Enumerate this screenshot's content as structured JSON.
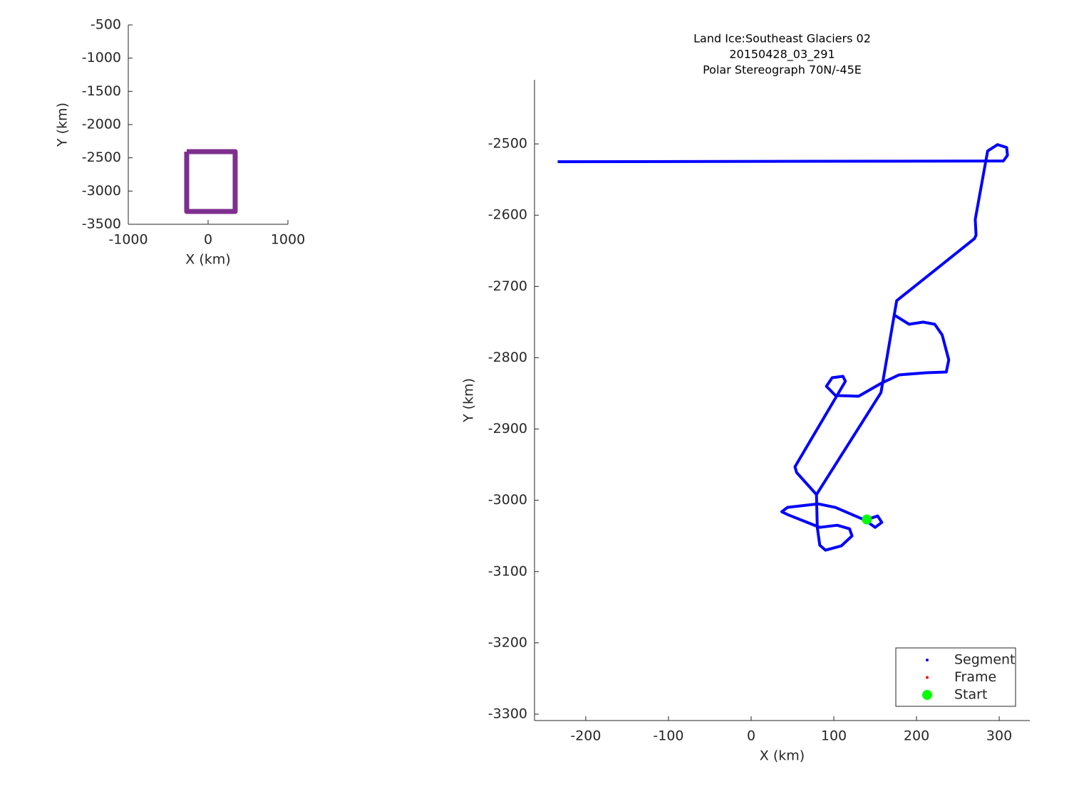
{
  "chart_data": [
    {
      "type": "line",
      "xlabel": "X (km)",
      "ylabel": "Y (km)",
      "xlim": [
        -1000,
        1000
      ],
      "xticks": [
        -1000,
        0,
        1000
      ],
      "ylim": [
        -3500,
        -500
      ],
      "yticks": [
        -3500,
        -3000,
        -2500,
        -2000,
        -1500,
        -1000,
        -500
      ],
      "series": [
        {
          "color": "#7e2f8e",
          "x": [
            -268,
            339,
            339,
            -268,
            -268
          ],
          "y": [
            -2407,
            -2407,
            -3307,
            -3307,
            -2407
          ]
        }
      ]
    },
    {
      "type": "line",
      "title": [
        "Land Ice:Southeast  Glaciers 02",
        "20150428_03_291",
        "Polar Stereograph 70N/-45E"
      ],
      "xlabel": "X (km)",
      "ylabel": "Y (km)",
      "xlim": [
        -262,
        337
      ],
      "xticks": [
        -200,
        -100,
        0,
        100,
        200,
        300
      ],
      "ylim": [
        -3309,
        -2410
      ],
      "yticks": [
        -3300,
        -3200,
        -3100,
        -3000,
        -2900,
        -2800,
        -2700,
        -2600,
        -2500
      ],
      "legend": "lower right",
      "series": [
        {
          "name": "Segment",
          "color": "#0000ff",
          "x": [
            140,
            153,
            158,
            150,
            138,
            102,
            81,
            44,
            37,
            44,
            83,
            104,
            119,
            122,
            109,
            90,
            83,
            80,
            79,
            55,
            53,
            114,
            111,
            98,
            91,
            102,
            130,
            157,
            179,
            212,
            236,
            239,
            231,
            222,
            208,
            191,
            173,
            null,
            79,
            157,
            176,
            270,
            272,
            271,
            286,
            298,
            309,
            310,
            305,
            -234
          ],
          "y": [
            -3027,
            -3022,
            -3031,
            -3038,
            -3028,
            -3010,
            -3005,
            -3010,
            -3016,
            -3020,
            -3038,
            -3035,
            -3040,
            -3050,
            -3064,
            -3070,
            -3063,
            -3038,
            -2992,
            -2961,
            -2953,
            -2833,
            -2826,
            -2828,
            -2840,
            -2853,
            -2854,
            -2836,
            -2824,
            -2821,
            -2820,
            -2803,
            -2768,
            -2753,
            -2750,
            -2753,
            -2740,
            null,
            -2992,
            -2849,
            -2720,
            -2633,
            -2628,
            -2606,
            -2510,
            -2501,
            -2505,
            -2516,
            -2524,
            -2525
          ]
        },
        {
          "name": "Frame",
          "color": "#ff0000",
          "x": [],
          "y": []
        },
        {
          "name": "Start",
          "color": "#00ff00",
          "x": [
            140
          ],
          "y": [
            -3027
          ]
        }
      ]
    }
  ]
}
